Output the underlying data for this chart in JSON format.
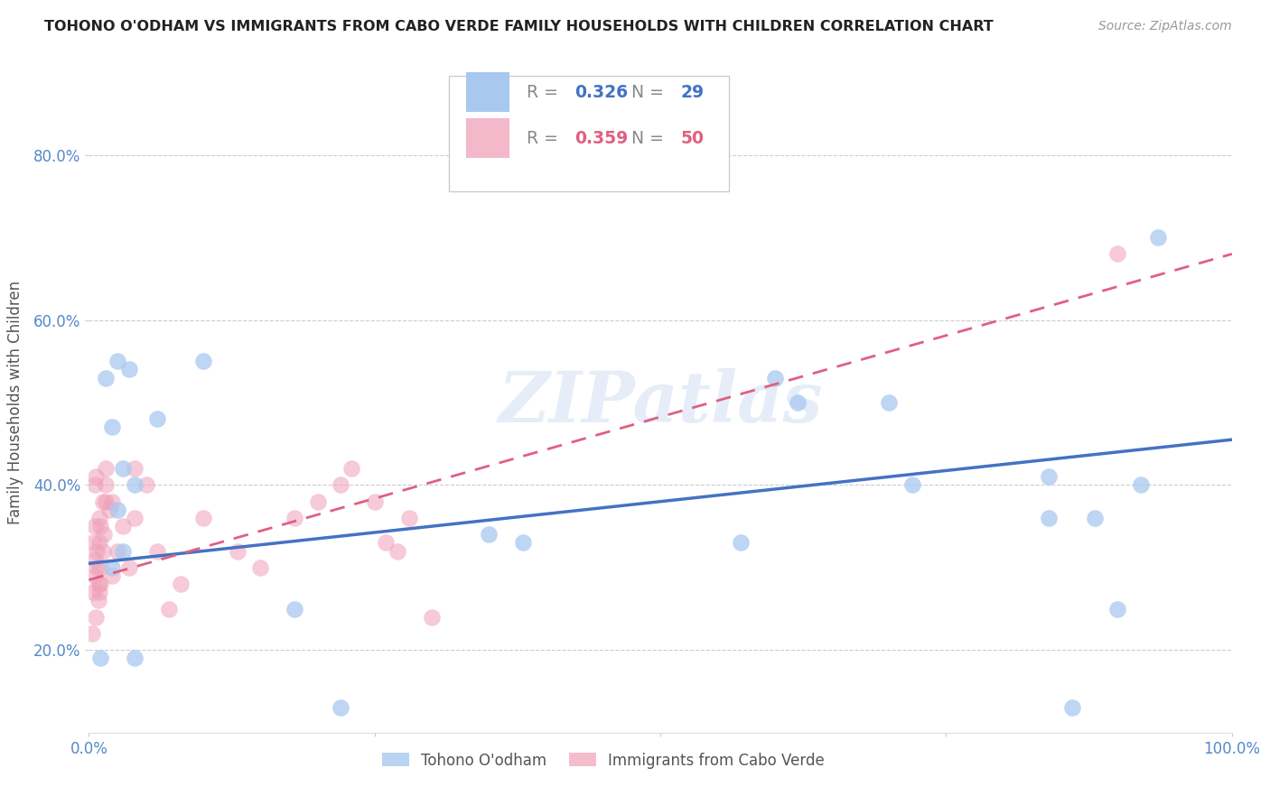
{
  "title": "TOHONO O'ODHAM VS IMMIGRANTS FROM CABO VERDE FAMILY HOUSEHOLDS WITH CHILDREN CORRELATION CHART",
  "source": "Source: ZipAtlas.com",
  "ylabel": "Family Households with Children",
  "xlim": [
    0,
    1.0
  ],
  "ylim": [
    0.1,
    0.9
  ],
  "xticks": [
    0.0,
    0.25,
    0.5,
    0.75,
    1.0
  ],
  "yticks": [
    0.2,
    0.4,
    0.6,
    0.8
  ],
  "legend_label1": "Tohono O'odham",
  "legend_label2": "Immigrants from Cabo Verde",
  "R1": "0.326",
  "N1": "29",
  "R2": "0.359",
  "N2": "50",
  "color_blue": "#a8c8f0",
  "color_pink": "#f0a0b8",
  "color_blue_line": "#4472c4",
  "color_pink_line": "#e06080",
  "watermark": "ZIPatlas",
  "blue_points_x": [
    0.01,
    0.015,
    0.02,
    0.02,
    0.025,
    0.025,
    0.03,
    0.03,
    0.035,
    0.04,
    0.04,
    0.06,
    0.1,
    0.18,
    0.22,
    0.35,
    0.38,
    0.57,
    0.6,
    0.62,
    0.7,
    0.72,
    0.84,
    0.84,
    0.86,
    0.88,
    0.9,
    0.92,
    0.935
  ],
  "blue_points_y": [
    0.19,
    0.53,
    0.47,
    0.3,
    0.37,
    0.55,
    0.42,
    0.32,
    0.54,
    0.4,
    0.19,
    0.48,
    0.55,
    0.25,
    0.13,
    0.34,
    0.33,
    0.33,
    0.53,
    0.5,
    0.5,
    0.4,
    0.41,
    0.36,
    0.13,
    0.36,
    0.25,
    0.4,
    0.7
  ],
  "pink_points_x": [
    0.003,
    0.004,
    0.004,
    0.005,
    0.005,
    0.005,
    0.005,
    0.006,
    0.006,
    0.007,
    0.007,
    0.008,
    0.008,
    0.009,
    0.009,
    0.009,
    0.01,
    0.01,
    0.01,
    0.012,
    0.012,
    0.013,
    0.015,
    0.015,
    0.015,
    0.018,
    0.02,
    0.02,
    0.025,
    0.03,
    0.035,
    0.04,
    0.04,
    0.05,
    0.06,
    0.07,
    0.08,
    0.1,
    0.13,
    0.15,
    0.18,
    0.2,
    0.22,
    0.23,
    0.25,
    0.26,
    0.27,
    0.28,
    0.3,
    0.9
  ],
  "pink_points_y": [
    0.22,
    0.27,
    0.33,
    0.29,
    0.31,
    0.35,
    0.4,
    0.24,
    0.41,
    0.32,
    0.3,
    0.26,
    0.28,
    0.27,
    0.33,
    0.36,
    0.35,
    0.28,
    0.3,
    0.38,
    0.32,
    0.34,
    0.4,
    0.38,
    0.42,
    0.37,
    0.38,
    0.29,
    0.32,
    0.35,
    0.3,
    0.36,
    0.42,
    0.4,
    0.32,
    0.25,
    0.28,
    0.36,
    0.32,
    0.3,
    0.36,
    0.38,
    0.4,
    0.42,
    0.38,
    0.33,
    0.32,
    0.36,
    0.24,
    0.68
  ],
  "blue_line_x": [
    0.0,
    1.0
  ],
  "blue_line_y": [
    0.305,
    0.455
  ],
  "pink_line_x": [
    0.0,
    1.0
  ],
  "pink_line_y": [
    0.285,
    0.68
  ]
}
